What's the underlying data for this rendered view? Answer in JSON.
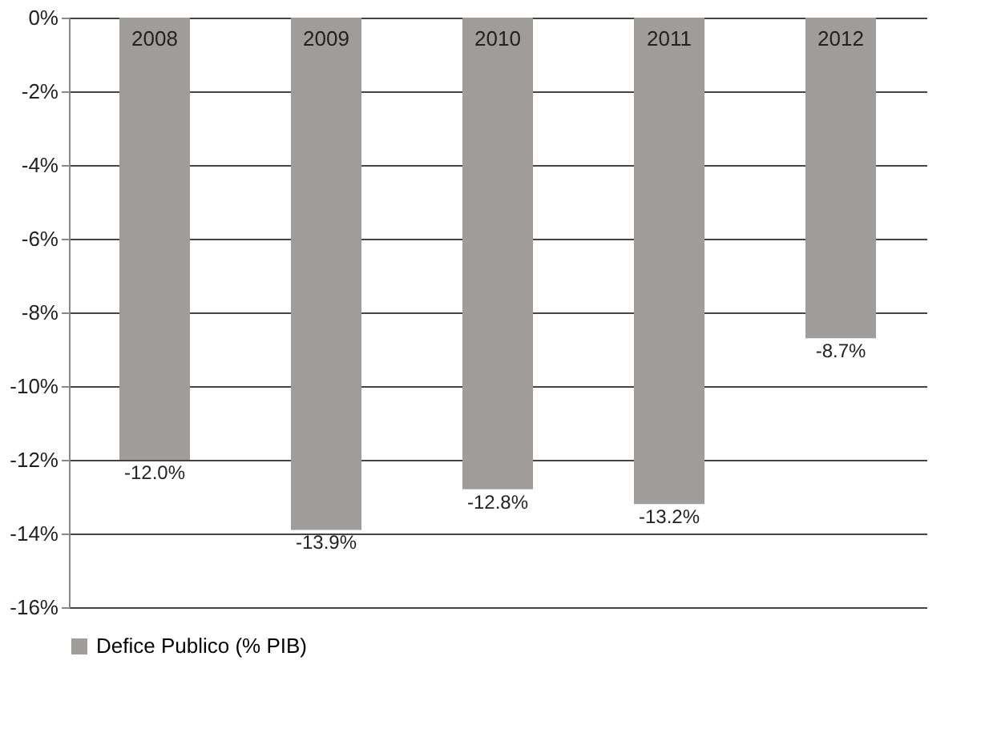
{
  "chart_data": {
    "type": "bar",
    "categories": [
      "2008",
      "2009",
      "2010",
      "2011",
      "2012"
    ],
    "series": [
      {
        "name": "Defice Publico (% PIB)",
        "color": "#a09c99",
        "values": [
          -12.0,
          -13.9,
          -12.8,
          -13.2,
          -8.7
        ],
        "value_labels": [
          "-12.0%",
          "-13.9%",
          "-12.8%",
          "-13.2%",
          "-8.7%"
        ]
      }
    ],
    "ylim": [
      -16,
      0
    ],
    "yticks": [
      {
        "value": 0,
        "label": "0%"
      },
      {
        "value": -2,
        "label": "-2%"
      },
      {
        "value": -4,
        "label": "-4%"
      },
      {
        "value": -6,
        "label": "-6%"
      },
      {
        "value": -8,
        "label": "-8%"
      },
      {
        "value": -10,
        "label": "-10%"
      },
      {
        "value": -12,
        "label": "-12%"
      },
      {
        "value": -14,
        "label": "-14%"
      },
      {
        "value": -16,
        "label": "-16%"
      }
    ],
    "grid": "y",
    "legend": "bottom"
  }
}
